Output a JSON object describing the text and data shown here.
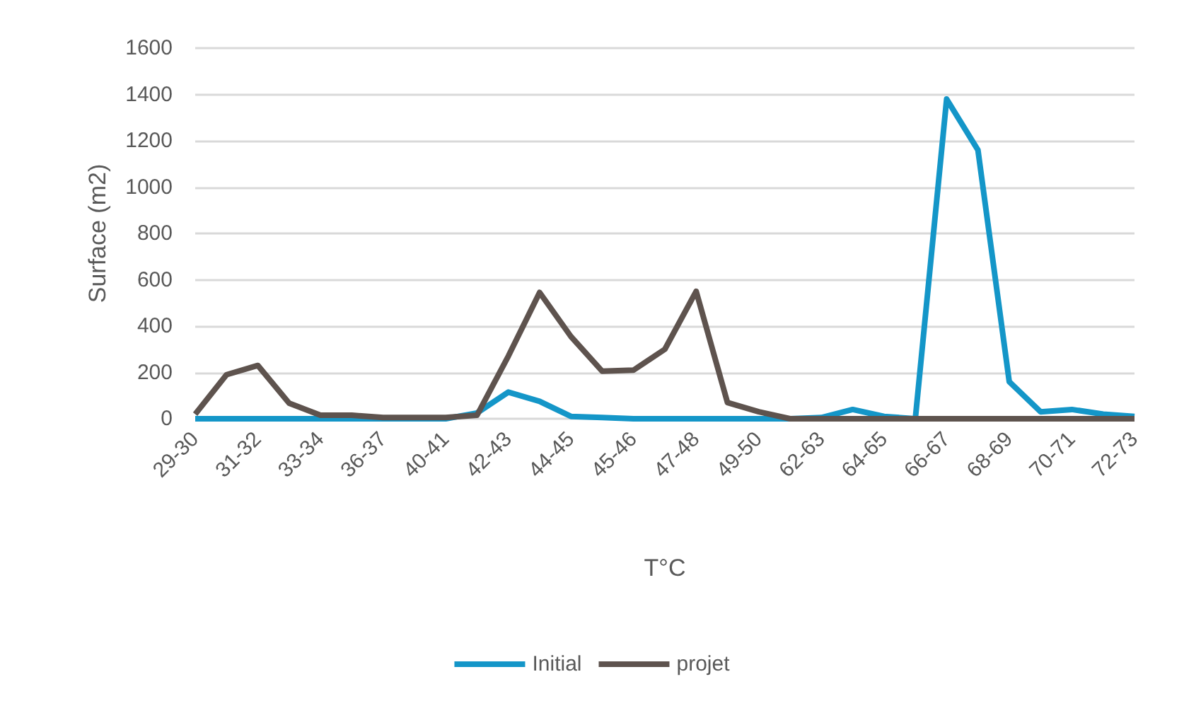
{
  "chart_data": {
    "type": "line",
    "xlabel": "T°C",
    "ylabel": "Surface (m2)",
    "categories": [
      "29-30",
      null,
      "31-32",
      null,
      "33-34",
      null,
      "36-37",
      null,
      "40-41",
      null,
      "42-43",
      null,
      "44-45",
      null,
      "45-46",
      null,
      "47-48",
      null,
      "49-50",
      null,
      "62-63",
      null,
      "64-65",
      null,
      "66-67",
      null,
      "68-69",
      null,
      "70-71",
      null,
      "72-73"
    ],
    "series": [
      {
        "name": "Initial",
        "color": "#1496c8",
        "values": [
          0,
          0,
          0,
          0,
          0,
          0,
          0,
          0,
          0,
          25,
          115,
          75,
          10,
          5,
          0,
          0,
          0,
          0,
          0,
          0,
          5,
          40,
          10,
          0,
          1380,
          1160,
          160,
          30,
          40,
          20,
          10
        ]
      },
      {
        "name": "projet",
        "color": "#5e534e",
        "values": [
          20,
          190,
          230,
          67,
          15,
          15,
          5,
          5,
          5,
          15,
          270,
          545,
          355,
          205,
          210,
          300,
          550,
          70,
          30,
          0,
          0,
          0,
          0,
          0,
          0,
          0,
          0,
          0,
          0,
          0,
          0
        ]
      }
    ],
    "ylim": [
      0,
      1600
    ],
    "yticks": [
      0,
      200,
      400,
      600,
      800,
      1000,
      1200,
      1400,
      1600
    ],
    "grid": "y",
    "legend": "bottom",
    "marker": "none",
    "line_style": "solid"
  }
}
